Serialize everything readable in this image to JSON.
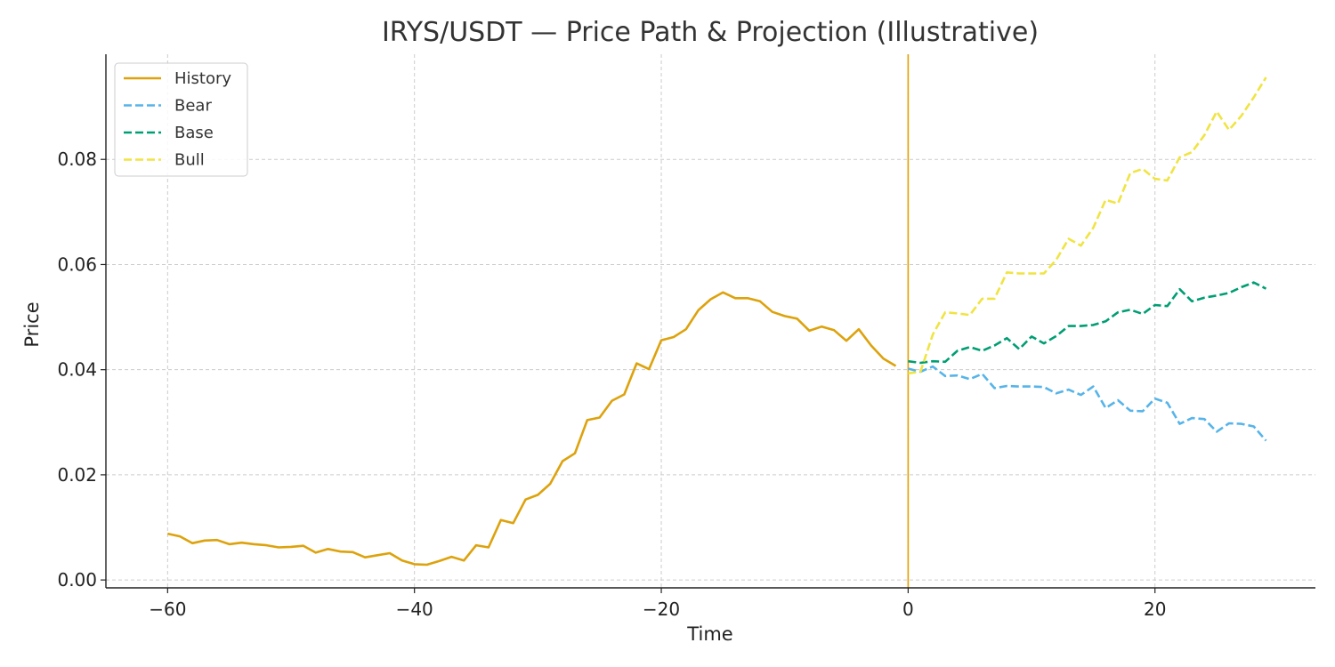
{
  "chart_data": {
    "type": "line",
    "title": "IRYS/USDT — Price Path & Projection (Illustrative)",
    "xlabel": "Time",
    "ylabel": "Price",
    "xlim": [
      -65,
      33
    ],
    "ylim": [
      -0.0015,
      0.1
    ],
    "xticks": [
      -60,
      -40,
      -20,
      0,
      20
    ],
    "xtick_labels": [
      "−60",
      "−40",
      "−20",
      "0",
      "20"
    ],
    "yticks": [
      0.0,
      0.02,
      0.04,
      0.06,
      0.08
    ],
    "ytick_labels": [
      "0.00",
      "0.02",
      "0.04",
      "0.06",
      "0.08"
    ],
    "grid": true,
    "legend_position": "top-left",
    "vline": {
      "x": 0,
      "color": "#E69F00"
    },
    "series": [
      {
        "name": "History",
        "color": "#DDA20C",
        "dash": "solid",
        "x": [
          -60,
          -59,
          -58,
          -57,
          -56,
          -55,
          -54,
          -53,
          -52,
          -51,
          -50,
          -49,
          -48,
          -47,
          -46,
          -45,
          -44,
          -43,
          -42,
          -41,
          -40,
          -39,
          -38,
          -37,
          -36,
          -35,
          -34,
          -33,
          -32,
          -31,
          -30,
          -29,
          -28,
          -27,
          -26,
          -25,
          -24,
          -23,
          -22,
          -21,
          -20,
          -19,
          -18,
          -17,
          -16,
          -15,
          -14,
          -13,
          -12,
          -11,
          -10,
          -9,
          -8,
          -7,
          -6,
          -5,
          -4,
          -3,
          -2,
          -1
        ],
        "values": [
          0.0088,
          0.0083,
          0.007,
          0.0075,
          0.0076,
          0.0068,
          0.0071,
          0.0068,
          0.0066,
          0.0062,
          0.0063,
          0.0065,
          0.0052,
          0.0059,
          0.0054,
          0.0053,
          0.0043,
          0.0047,
          0.0051,
          0.0037,
          0.003,
          0.0029,
          0.0036,
          0.0044,
          0.0037,
          0.0066,
          0.0062,
          0.0114,
          0.0108,
          0.0153,
          0.0162,
          0.0183,
          0.0226,
          0.0241,
          0.0304,
          0.0309,
          0.0341,
          0.0353,
          0.0412,
          0.0401,
          0.0456,
          0.0462,
          0.0477,
          0.0513,
          0.0534,
          0.0547,
          0.0536,
          0.0536,
          0.053,
          0.051,
          0.0502,
          0.0497,
          0.0474,
          0.0482,
          0.0475,
          0.0455,
          0.0477,
          0.0446,
          0.0421,
          0.0407
        ]
      },
      {
        "name": "Bear",
        "color": "#56B4E9",
        "dash": "dashed",
        "x": [
          0,
          1,
          2,
          3,
          4,
          5,
          6,
          7,
          8,
          9,
          10,
          11,
          12,
          13,
          14,
          15,
          16,
          17,
          18,
          19,
          20,
          21,
          22,
          23,
          24,
          25,
          26,
          27,
          28,
          29
        ],
        "values": [
          0.0402,
          0.0396,
          0.0406,
          0.0388,
          0.0389,
          0.0382,
          0.0392,
          0.0365,
          0.0369,
          0.0368,
          0.0368,
          0.0367,
          0.0355,
          0.0362,
          0.0352,
          0.0368,
          0.0327,
          0.0342,
          0.0322,
          0.0321,
          0.0345,
          0.0337,
          0.0297,
          0.0308,
          0.0306,
          0.0282,
          0.0298,
          0.0297,
          0.0292,
          0.0265
        ]
      },
      {
        "name": "Base",
        "color": "#009E73",
        "dash": "dashed",
        "x": [
          0,
          1,
          2,
          3,
          4,
          5,
          6,
          7,
          8,
          9,
          10,
          11,
          12,
          13,
          14,
          15,
          16,
          17,
          18,
          19,
          20,
          21,
          22,
          23,
          24,
          25,
          26,
          27,
          28,
          29
        ],
        "values": [
          0.0416,
          0.0413,
          0.0416,
          0.0415,
          0.0436,
          0.0443,
          0.0436,
          0.0446,
          0.046,
          0.0439,
          0.0463,
          0.045,
          0.0464,
          0.0483,
          0.0483,
          0.0485,
          0.0492,
          0.0509,
          0.0514,
          0.0506,
          0.0523,
          0.0521,
          0.0553,
          0.053,
          0.0537,
          0.0541,
          0.0546,
          0.0557,
          0.0566,
          0.0554
        ]
      },
      {
        "name": "Bull",
        "color": "#F0E442",
        "dash": "dashed",
        "x": [
          0,
          1,
          2,
          3,
          4,
          5,
          6,
          7,
          8,
          9,
          10,
          11,
          12,
          13,
          14,
          15,
          16,
          17,
          18,
          19,
          20,
          21,
          22,
          23,
          24,
          25,
          26,
          27,
          28,
          29
        ],
        "values": [
          0.0393,
          0.0396,
          0.0467,
          0.0509,
          0.0507,
          0.0504,
          0.0535,
          0.0535,
          0.0585,
          0.0583,
          0.0583,
          0.0583,
          0.0609,
          0.0649,
          0.0636,
          0.067,
          0.0723,
          0.0716,
          0.0774,
          0.0782,
          0.0763,
          0.076,
          0.0804,
          0.0814,
          0.0846,
          0.0891,
          0.0856,
          0.0883,
          0.0918,
          0.0956
        ]
      }
    ]
  }
}
